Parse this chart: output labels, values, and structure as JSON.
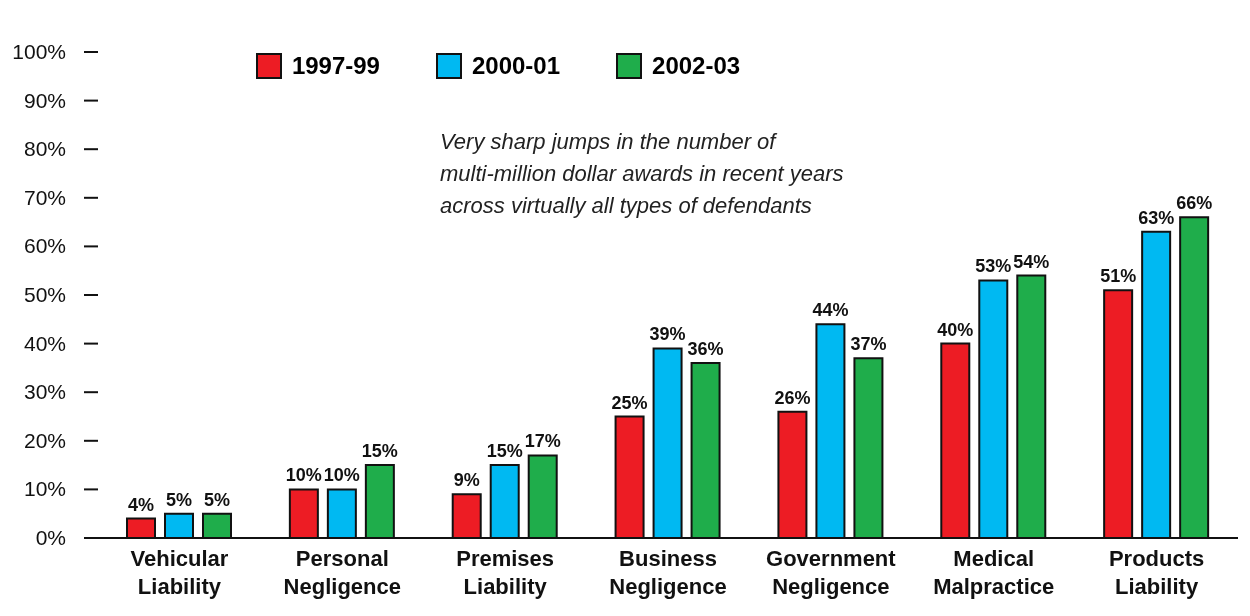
{
  "chart_data": {
    "type": "bar",
    "categories": [
      "Vehicular Liability",
      "Personal Negligence",
      "Premises Liability",
      "Business Negligence",
      "Government Negligence",
      "Medical Malpractice",
      "Products Liability"
    ],
    "series": [
      {
        "name": "1997-99",
        "color": "#ed1c24",
        "values": [
          4,
          10,
          9,
          25,
          26,
          40,
          51
        ],
        "value_labels": [
          "4%",
          "10%",
          "9%",
          "25%",
          "26%",
          "40%",
          "51%"
        ]
      },
      {
        "name": "2000-01",
        "color": "#00b9f2",
        "values": [
          5,
          10,
          15,
          39,
          44,
          53,
          63
        ],
        "value_labels": [
          "5%",
          "10%",
          "15%",
          "39%",
          "44%",
          "53%",
          "63%"
        ]
      },
      {
        "name": "2002-03",
        "color": "#1fad4b",
        "values": [
          5,
          15,
          17,
          36,
          37,
          54,
          66
        ],
        "value_labels": [
          "5%",
          "15%",
          "17%",
          "36%",
          "37%",
          "54%",
          "66%"
        ]
      }
    ],
    "ylim": [
      0,
      100
    ],
    "yticks": [
      {
        "value": 0,
        "label": "0%"
      },
      {
        "value": 10,
        "label": "10%"
      },
      {
        "value": 20,
        "label": "20%"
      },
      {
        "value": 30,
        "label": "30%"
      },
      {
        "value": 40,
        "label": "40%"
      },
      {
        "value": 50,
        "label": "50%"
      },
      {
        "value": 60,
        "label": "60%"
      },
      {
        "value": 70,
        "label": "70%"
      },
      {
        "value": 80,
        "label": "80%"
      },
      {
        "value": 90,
        "label": "90%"
      },
      {
        "value": 100,
        "label": "100%"
      }
    ],
    "annotations": [
      "Very sharp jumps in the number of\nmulti-million dollar awards in recent years\nacross virtually all types of defendants"
    ],
    "legend": "top",
    "grid": false
  }
}
